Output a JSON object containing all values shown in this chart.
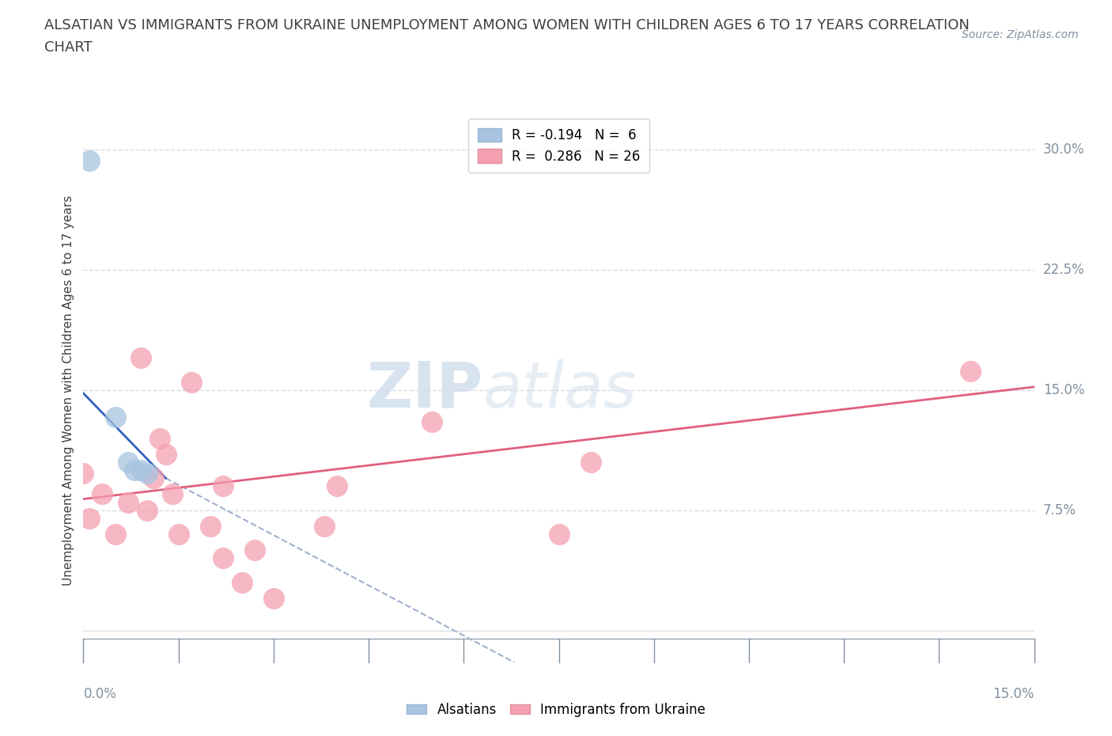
{
  "title_line1": "ALSATIAN VS IMMIGRANTS FROM UKRAINE UNEMPLOYMENT AMONG WOMEN WITH CHILDREN AGES 6 TO 17 YEARS CORRELATION",
  "title_line2": "CHART",
  "source": "Source: ZipAtlas.com",
  "ylabel_label": "Unemployment Among Women with Children Ages 6 to 17 years",
  "ylabel_ticks": [
    "7.5%",
    "15.0%",
    "22.5%",
    "30.0%"
  ],
  "ytick_vals": [
    0.075,
    0.15,
    0.225,
    0.3
  ],
  "xlim": [
    0.0,
    0.15
  ],
  "ylim": [
    -0.02,
    0.32
  ],
  "alsatian_color": "#a8c4e0",
  "ukraine_color": "#f4a0b0",
  "line_blue": "#3060c0",
  "line_pink": "#e06080",
  "line_dashed": "#a0b0cc",
  "alsatian_points_x": [
    0.001,
    0.005,
    0.007,
    0.008,
    0.009,
    0.01
  ],
  "alsatian_points_y": [
    0.293,
    0.133,
    0.105,
    0.1,
    0.1,
    0.098
  ],
  "ukraine_points_x": [
    0.0,
    0.001,
    0.003,
    0.005,
    0.007,
    0.009,
    0.01,
    0.011,
    0.012,
    0.013,
    0.014,
    0.015,
    0.017,
    0.02,
    0.022,
    0.022,
    0.025,
    0.027,
    0.03,
    0.038,
    0.04,
    0.055,
    0.075,
    0.08,
    0.14
  ],
  "ukraine_points_y": [
    0.098,
    0.07,
    0.085,
    0.06,
    0.08,
    0.17,
    0.075,
    0.095,
    0.12,
    0.11,
    0.085,
    0.06,
    0.155,
    0.065,
    0.045,
    0.09,
    0.03,
    0.05,
    0.02,
    0.065,
    0.09,
    0.13,
    0.06,
    0.105,
    0.162
  ],
  "blue_line_x": [
    0.0,
    0.013
  ],
  "blue_line_y": [
    0.148,
    0.095
  ],
  "pink_line_x": [
    0.0,
    0.15
  ],
  "pink_line_y": [
    0.082,
    0.152
  ],
  "dashed_line_x": [
    0.013,
    0.068
  ],
  "dashed_line_y": [
    0.095,
    -0.02
  ],
  "grid_color": "#d8dce8",
  "background": "#ffffff",
  "title_color": "#404040",
  "axis_color": "#8090a0"
}
